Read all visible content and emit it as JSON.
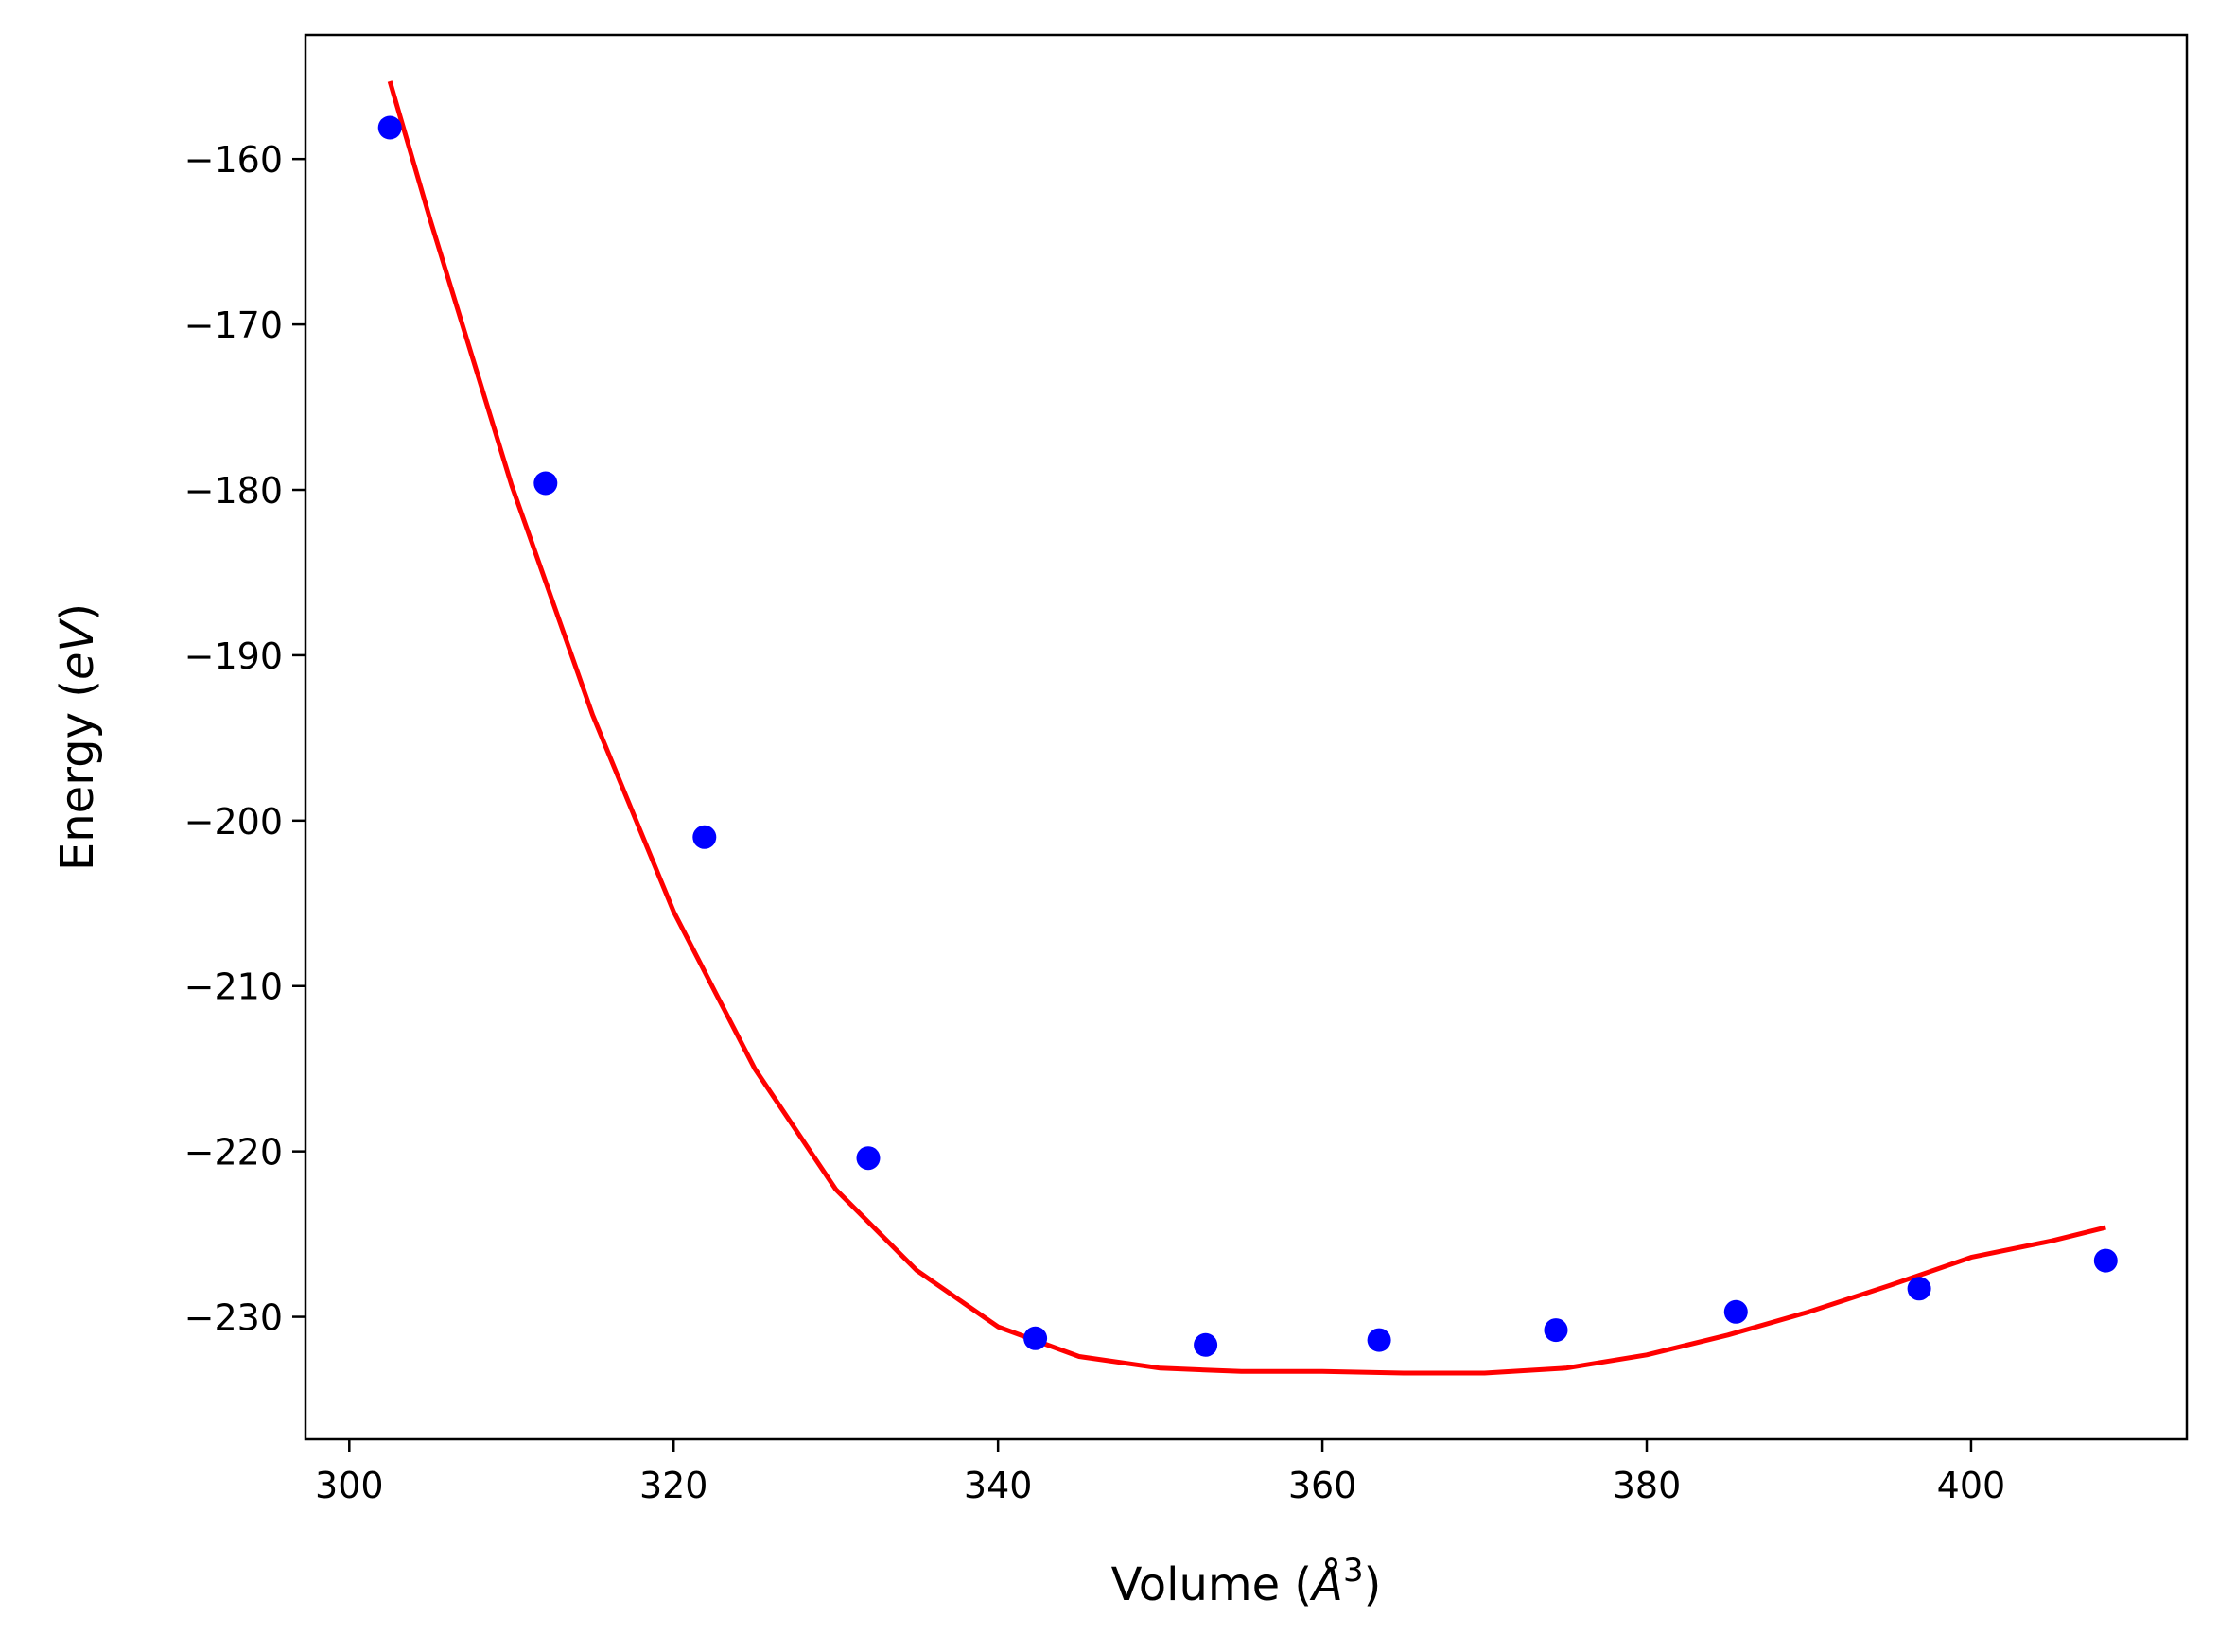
{
  "chart_data": {
    "type": "scatter",
    "title": "",
    "xlabel_parts": {
      "prefix": "Volume (",
      "symbol": "Å",
      "sup": "3",
      "suffix": ")"
    },
    "ylabel_parts": {
      "prefix": "Energy (",
      "symbol": "eV",
      "suffix": ")"
    },
    "xlim": [
      297.3,
      413.3
    ],
    "ylim": [
      -237.4,
      -152.5
    ],
    "xticks": [
      300,
      320,
      340,
      360,
      380,
      400
    ],
    "xtick_labels": [
      "300",
      "320",
      "340",
      "360",
      "380",
      "400"
    ],
    "yticks": [
      -160,
      -170,
      -180,
      -190,
      -200,
      -210,
      -220,
      -230
    ],
    "ytick_labels": [
      "−160",
      "−170",
      "−180",
      "−190",
      "−200",
      "−210",
      "−220",
      "−230"
    ],
    "grid": false,
    "series": [
      {
        "kind": "points",
        "color": "#0000ff",
        "x": [
          302.5,
          312.1,
          321.9,
          332.0,
          342.3,
          352.8,
          363.5,
          374.4,
          385.5,
          396.8,
          408.3
        ],
        "y": [
          -158.1,
          -179.6,
          -201.0,
          -220.4,
          -231.3,
          -231.7,
          -231.4,
          -230.8,
          -229.7,
          -228.3,
          -226.6
        ]
      },
      {
        "kind": "fit-line",
        "color": "#ff0000",
        "x": [
          302.5,
          305,
          310,
          315,
          320,
          325,
          330,
          335,
          340,
          345,
          350,
          355,
          360,
          365,
          367.8,
          370,
          375,
          380,
          385,
          390,
          395,
          400,
          405,
          408.3
        ],
        "y": [
          -155.3,
          -163.7,
          -179.7,
          -193.6,
          -205.5,
          -215.0,
          -222.3,
          -227.2,
          -230.6,
          -232.4,
          -233.1,
          -233.3,
          -233.3,
          -233.4,
          -233.4,
          -233.4,
          -233.1,
          -232.3,
          -231.1,
          -229.7,
          -228.1,
          -226.4,
          -225.4,
          -224.6
        ]
      }
    ]
  }
}
